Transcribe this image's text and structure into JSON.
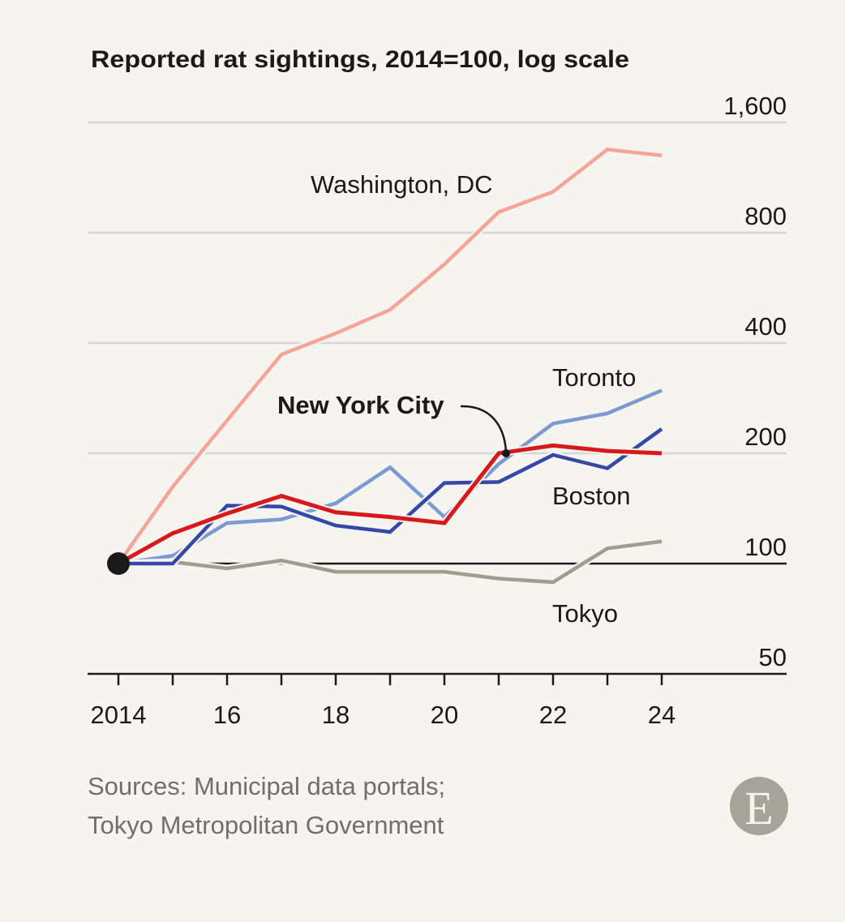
{
  "chart_data": {
    "type": "line",
    "title": "Reported rat sightings, 2014=100, log scale",
    "xlabel": "",
    "ylabel": "",
    "yscale": "log",
    "ylim": [
      50,
      1600
    ],
    "yticks": [
      1600,
      800,
      400,
      200,
      100,
      50
    ],
    "ytick_labels": [
      "1,600",
      "800",
      "400",
      "200",
      "100",
      "50"
    ],
    "xlim": [
      2014,
      2024
    ],
    "xticks": [
      2014,
      2016,
      2018,
      2020,
      2022,
      2024
    ],
    "xtick_labels": [
      "2014",
      "16",
      "18",
      "20",
      "22",
      "24"
    ],
    "x": [
      2014,
      2015,
      2016,
      2017,
      2018,
      2019,
      2020,
      2021,
      2022,
      2023,
      2024
    ],
    "series": [
      {
        "name": "Washington, DC",
        "color": "#f4a597",
        "values": [
          100,
          162,
          246,
          372,
          425,
          493,
          656,
          911,
          1035,
          1350,
          1300
        ]
      },
      {
        "name": "Toronto",
        "color": "#7b9bd0",
        "values": [
          100,
          105,
          129,
          132,
          146,
          183,
          134,
          187,
          241,
          257,
          297
        ]
      },
      {
        "name": "Tokyo",
        "color": "#9e9e90",
        "values": [
          100,
          101,
          97,
          102,
          95,
          95,
          95,
          91,
          89,
          110,
          115
        ]
      },
      {
        "name": "Boston",
        "color": "#3547a8",
        "values": [
          100,
          100,
          144,
          143,
          127,
          122,
          166,
          167,
          198,
          182,
          233
        ]
      },
      {
        "name": "New York City",
        "color": "#d7191c",
        "values": [
          100,
          121,
          137,
          153,
          138,
          134,
          129,
          200,
          210,
          203,
          200
        ]
      }
    ],
    "annotations": [
      {
        "text": "New York City",
        "target_series": "New York City",
        "target_x": 2021
      }
    ]
  },
  "source": {
    "line1": "Sources: Municipal data portals;",
    "line2": "Tokyo Metropolitan Government"
  },
  "logo": {
    "letter": "E",
    "color": "#a6a498"
  }
}
